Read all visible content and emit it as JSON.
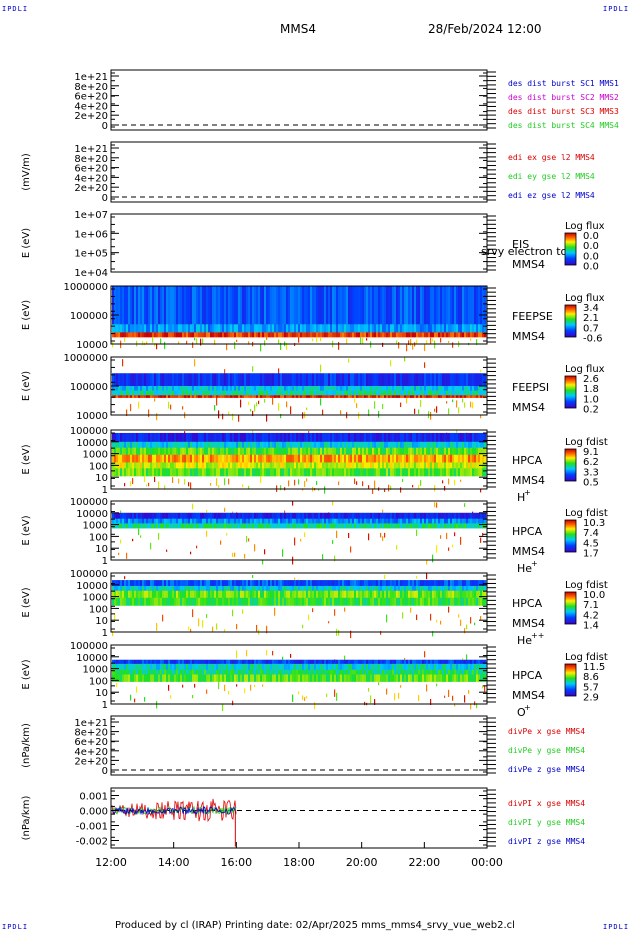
{
  "corner": "IPDLI",
  "header": {
    "spacecraft": "MMS4",
    "datetime": "28/Feb/2024 12:00"
  },
  "footer": "Produced by cl (IRAP)    Printing date: 02/Apr/2025    mms_mms4_srvy_vue_web2.cl",
  "colors": {
    "red": "#dd0000",
    "green": "#22cc22",
    "blue": "#0000cc",
    "magenta": "#cc00cc"
  },
  "chart_data": {
    "type": "heatmap",
    "x_ticks": [
      "12:00",
      "14:00",
      "16:00",
      "18:00",
      "20:00",
      "22:00",
      "00:00"
    ],
    "xlim_hours": [
      12,
      24
    ],
    "panels": [
      {
        "id": "des-dist",
        "kind": "line",
        "ylabel": "",
        "yticks": [
          "1e+21",
          "8e+20",
          "6e+20",
          "4e+20",
          "2e+20",
          "0"
        ],
        "dashed_zero": true,
        "legend": [
          {
            "text": "des dist burst SC1 MMS1",
            "color": "blue"
          },
          {
            "text": "des dist burst SC2 MMS2",
            "color": "magenta"
          },
          {
            "text": "des dist burst SC3 MMS3",
            "color": "red"
          },
          {
            "text": "des dist burst SC4 MMS4",
            "color": "green"
          }
        ]
      },
      {
        "id": "edi-e",
        "kind": "line",
        "ylabel": "(mV/m)",
        "yticks": [
          "1e+21",
          "8e+20",
          "6e+20",
          "4e+20",
          "2e+20",
          "0"
        ],
        "dashed_zero": true,
        "legend": [
          {
            "text": "edi ex gse l2 MMS4",
            "color": "red"
          },
          {
            "text": "edi ey gse l2 MMS4",
            "color": "green"
          },
          {
            "text": "edi ez gse l2 MMS4",
            "color": "blue"
          }
        ]
      },
      {
        "id": "eis",
        "kind": "spec",
        "ylabel": "E (eV)",
        "yticks": [
          "1e+07",
          "1e+06",
          "1e+05",
          "1e+04"
        ],
        "labels": [
          "EIS",
          "MMS4"
        ],
        "overlay": "srvy electron to",
        "cbar_title": "Log flux",
        "cbar_ticks": [
          "0.0",
          "0.0",
          "0.0",
          "0.0"
        ],
        "fill_until_hour": 12,
        "bands": []
      },
      {
        "id": "feeps-e",
        "kind": "spec",
        "ylabel": "E (eV)",
        "yticks": [
          "1000000",
          "100000",
          "10000"
        ],
        "labels": [
          "FEEPSE",
          "MMS4"
        ],
        "cbar_title": "Log flux",
        "cbar_ticks": [
          "3.4",
          "2.1",
          "0.7",
          "-0.6"
        ],
        "fill_until_hour": 24,
        "bands": [
          {
            "lo": 0.0,
            "hi": 0.66,
            "level": 0.22
          },
          {
            "lo": 0.66,
            "hi": 0.8,
            "level": 0.32
          },
          {
            "lo": 0.8,
            "hi": 0.88,
            "level": 0.92
          },
          {
            "lo": 0.88,
            "hi": 1.0,
            "level": -1
          }
        ]
      },
      {
        "id": "feeps-i",
        "kind": "spec",
        "ylabel": "E (eV)",
        "yticks": [
          "1000000",
          "100000",
          "10000"
        ],
        "labels": [
          "FEEPSI",
          "MMS4"
        ],
        "cbar_title": "Log flux",
        "cbar_ticks": [
          "2.6",
          "1.8",
          "1.0",
          "0.2"
        ],
        "fill_until_hour": 24,
        "bands": [
          {
            "lo": 0.0,
            "hi": 0.28,
            "level": -0.2
          },
          {
            "lo": 0.28,
            "hi": 0.5,
            "level": 0.15
          },
          {
            "lo": 0.5,
            "hi": 0.58,
            "level": 0.38
          },
          {
            "lo": 0.58,
            "hi": 0.66,
            "level": 0.45
          },
          {
            "lo": 0.66,
            "hi": 0.7,
            "level": 0.93
          },
          {
            "lo": 0.7,
            "hi": 1.0,
            "level": -1
          }
        ]
      },
      {
        "id": "hpca-h",
        "kind": "spec",
        "ylabel": "E (eV)",
        "yticks": [
          "100000",
          "10000",
          "1000",
          "100",
          "10",
          "1"
        ],
        "labels": [
          "HPCA",
          "MMS4",
          "H",
          "+"
        ],
        "cbar_title": "Log fdist",
        "cbar_ticks": [
          "9.1",
          "6.2",
          "3.3",
          "0.5"
        ],
        "fill_until_hour": 24,
        "bands": [
          {
            "lo": 0.0,
            "hi": 0.05,
            "level": -0.1
          },
          {
            "lo": 0.05,
            "hi": 0.2,
            "level": 0.12
          },
          {
            "lo": 0.2,
            "hi": 0.3,
            "level": 0.4
          },
          {
            "lo": 0.3,
            "hi": 0.42,
            "level": 0.58
          },
          {
            "lo": 0.42,
            "hi": 0.55,
            "level": 0.8
          },
          {
            "lo": 0.55,
            "hi": 0.65,
            "level": 0.68
          },
          {
            "lo": 0.65,
            "hi": 0.78,
            "level": 0.58
          },
          {
            "lo": 0.78,
            "hi": 1.0,
            "level": -0.85
          }
        ]
      },
      {
        "id": "hpca-he1",
        "kind": "spec",
        "ylabel": "E (eV)",
        "yticks": [
          "100000",
          "10000",
          "1000",
          "100",
          "10",
          "1"
        ],
        "labels": [
          "HPCA",
          "MMS4",
          "He",
          "+"
        ],
        "cbar_title": "Log fdist",
        "cbar_ticks": [
          "10.3",
          "7.4",
          "4.5",
          "1.7"
        ],
        "fill_until_hour": 24,
        "bands": [
          {
            "lo": 0.0,
            "hi": 0.2,
            "level": -0.15
          },
          {
            "lo": 0.2,
            "hi": 0.3,
            "level": 0.12
          },
          {
            "lo": 0.3,
            "hi": 0.38,
            "level": 0.3
          },
          {
            "lo": 0.38,
            "hi": 0.46,
            "level": 0.48
          },
          {
            "lo": 0.46,
            "hi": 1.0,
            "level": -0.9
          }
        ]
      },
      {
        "id": "hpca-he2",
        "kind": "spec",
        "ylabel": "E (eV)",
        "yticks": [
          "100000",
          "10000",
          "1000",
          "100",
          "10",
          "1"
        ],
        "labels": [
          "HPCA",
          "MMS4",
          "He",
          "++"
        ],
        "cbar_title": "Log fdist",
        "cbar_ticks": [
          "10.0",
          "7.1",
          "4.2",
          "1.4"
        ],
        "fill_until_hour": 24,
        "bands": [
          {
            "lo": 0.0,
            "hi": 0.12,
            "level": -0.15
          },
          {
            "lo": 0.12,
            "hi": 0.22,
            "level": 0.22
          },
          {
            "lo": 0.22,
            "hi": 0.3,
            "level": 0.4
          },
          {
            "lo": 0.3,
            "hi": 0.42,
            "level": 0.6
          },
          {
            "lo": 0.42,
            "hi": 0.55,
            "level": 0.55
          },
          {
            "lo": 0.55,
            "hi": 1.0,
            "level": -0.88
          }
        ]
      },
      {
        "id": "hpca-o",
        "kind": "spec",
        "ylabel": "E (eV)",
        "yticks": [
          "100000",
          "10000",
          "1000",
          "100",
          "10",
          "1"
        ],
        "labels": [
          "HPCA",
          "MMS4",
          "O",
          "+"
        ],
        "cbar_title": "Log fdist",
        "cbar_ticks": [
          "11.5",
          "8.6",
          "5.7",
          "2.9"
        ],
        "fill_until_hour": 24,
        "bands": [
          {
            "lo": 0.05,
            "hi": 0.25,
            "level": -0.15
          },
          {
            "lo": 0.25,
            "hi": 0.32,
            "level": 0.18
          },
          {
            "lo": 0.32,
            "hi": 0.42,
            "level": 0.42
          },
          {
            "lo": 0.42,
            "hi": 0.5,
            "level": 0.5
          },
          {
            "lo": 0.5,
            "hi": 0.62,
            "level": 0.58
          },
          {
            "lo": 0.62,
            "hi": 1.0,
            "level": -0.9
          }
        ]
      },
      {
        "id": "divpe",
        "kind": "line",
        "ylabel": "(nPa/km)",
        "yticks": [
          "1e+21",
          "8e+20",
          "6e+20",
          "4e+20",
          "2e+20",
          "0"
        ],
        "dashed_zero": true,
        "legend": [
          {
            "text": "divPe x gse MMS4",
            "color": "red"
          },
          {
            "text": "divPe y gse MMS4",
            "color": "green"
          },
          {
            "text": "divPe z gse MMS4",
            "color": "blue"
          }
        ]
      },
      {
        "id": "divpi",
        "kind": "timeseries",
        "ylabel": "(nPa/km)",
        "yticks": [
          "0.001",
          "0.000",
          "-0.001",
          "-0.002"
        ],
        "ylim": [
          -0.0025,
          0.0015
        ],
        "data_until_hour": 16,
        "legend": [
          {
            "text": "divPI x gse MMS4",
            "color": "red"
          },
          {
            "text": "divPI y gse MMS4",
            "color": "green"
          },
          {
            "text": "divPI z gse MMS4",
            "color": "blue"
          }
        ]
      }
    ]
  }
}
